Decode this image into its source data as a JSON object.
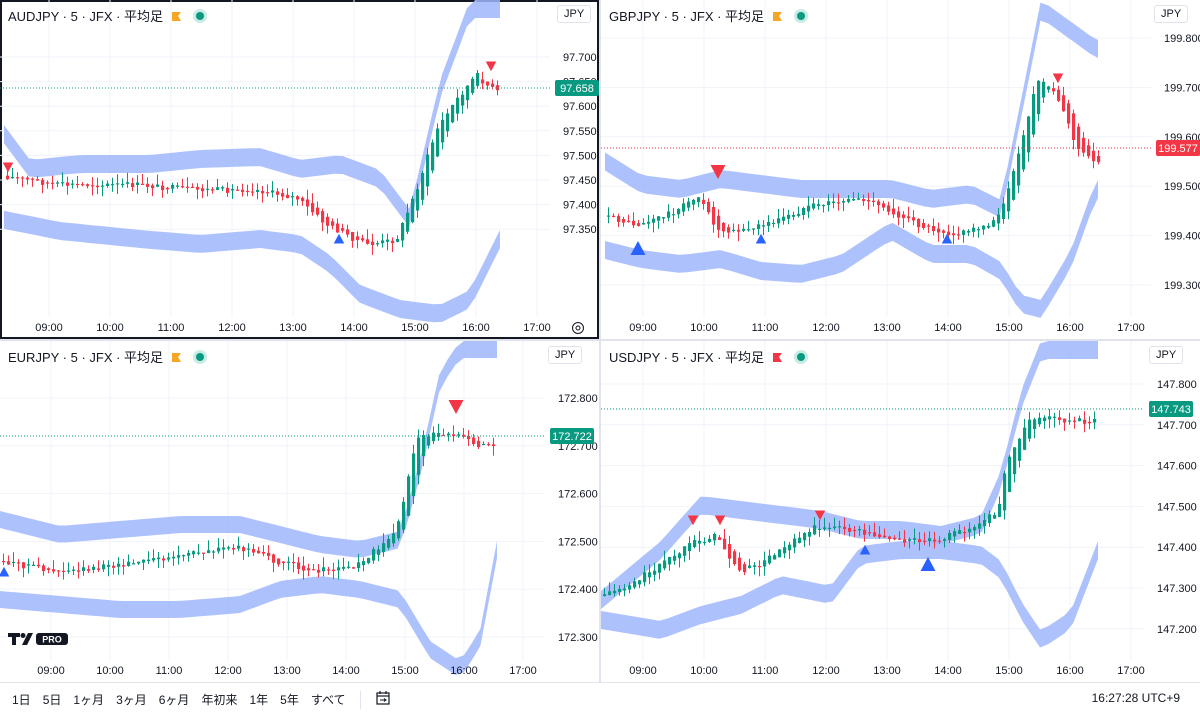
{
  "colors": {
    "up": "#089981",
    "down": "#f23645",
    "band": "#9fb6fb",
    "marker_up": "#2962ff",
    "marker_down": "#f23645",
    "grid": "#f0f3fa"
  },
  "panes": [
    {
      "id": "audjpy",
      "title": "AUDJPY · 5 · JFX · 平均足",
      "flag_color": "#f5a623",
      "currency": "JPY",
      "price_ticks": [
        "97.700",
        "97.650",
        "97.600",
        "97.550",
        "97.500",
        "97.450",
        "97.400",
        "97.350"
      ],
      "last_price": "97.658",
      "last_price_color": "#089981",
      "time_ticks": [
        "09:00",
        "10:00",
        "11:00",
        "12:00",
        "13:00",
        "14:00",
        "15:00",
        "16:00",
        "17:00"
      ]
    },
    {
      "id": "gbpjpy",
      "title": "GBPJPY · 5 · JFX · 平均足",
      "flag_color": "#f5a623",
      "currency": "JPY",
      "price_ticks": [
        "199.800",
        "199.700",
        "199.600",
        "199.500",
        "199.400",
        "199.300"
      ],
      "last_price": "199.577",
      "last_price_color": "#f23645",
      "time_ticks": [
        "09:00",
        "10:00",
        "11:00",
        "12:00",
        "13:00",
        "14:00",
        "15:00",
        "16:00",
        "17:00"
      ]
    },
    {
      "id": "eurjpy",
      "title": "EURJPY · 5 · JFX · 平均足",
      "flag_color": "#f5a623",
      "currency": "JPY",
      "price_ticks": [
        "172.800",
        "172.700",
        "172.600",
        "172.500",
        "172.400",
        "172.300"
      ],
      "last_price": "172.722",
      "last_price_color": "#089981",
      "time_ticks": [
        "09:00",
        "10:00",
        "11:00",
        "12:00",
        "13:00",
        "14:00",
        "15:00",
        "16:00",
        "17:00"
      ]
    },
    {
      "id": "usdjpy",
      "title": "USDJPY · 5 · JFX · 平均足",
      "flag_color": "#f23645",
      "currency": "JPY",
      "price_ticks": [
        "147.800",
        "147.700",
        "147.600",
        "147.500",
        "147.400",
        "147.300",
        "147.200"
      ],
      "last_price": "147.743",
      "last_price_color": "#089981",
      "time_ticks": [
        "09:00",
        "10:00",
        "11:00",
        "12:00",
        "13:00",
        "14:00",
        "15:00",
        "16:00",
        "17:00"
      ]
    }
  ],
  "toolbar": {
    "ranges": [
      "1日",
      "5日",
      "1ヶ月",
      "3ヶ月",
      "6ヶ月",
      "年初来",
      "1年",
      "5年",
      "すべて"
    ],
    "clock": "16:27:28 UTC+9"
  },
  "logo_badge": "PRO",
  "icons": [
    "settings-gear-icon",
    "calendar-range-icon",
    "tradingview-logo-icon",
    "flag-icon"
  ]
}
